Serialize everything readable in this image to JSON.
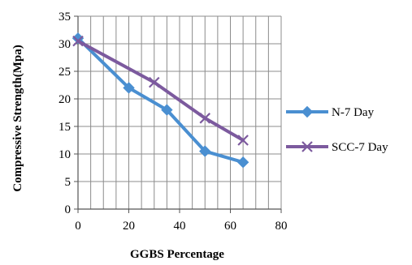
{
  "chart_data": {
    "type": "line",
    "title": "",
    "xlabel": "GGBS Percentage",
    "ylabel": "Compressive Strength(Mpa)",
    "xlim": [
      0,
      80
    ],
    "ylim": [
      0,
      35
    ],
    "xticks": [
      0,
      20,
      40,
      60,
      80
    ],
    "yticks": [
      0,
      5,
      10,
      15,
      20,
      25,
      30,
      35
    ],
    "grid": true,
    "legend_position": "right",
    "series": [
      {
        "name": "N-7 Day",
        "color": "#4A8FD1",
        "marker": "diamond",
        "x": [
          0,
          20,
          35,
          50,
          65
        ],
        "y": [
          31,
          22,
          18,
          10.5,
          8.5
        ]
      },
      {
        "name": "SCC-7 Day",
        "color": "#7C5A9E",
        "marker": "cross",
        "x": [
          0,
          30,
          50,
          65
        ],
        "y": [
          30.5,
          23,
          16.5,
          12.5
        ]
      }
    ]
  }
}
